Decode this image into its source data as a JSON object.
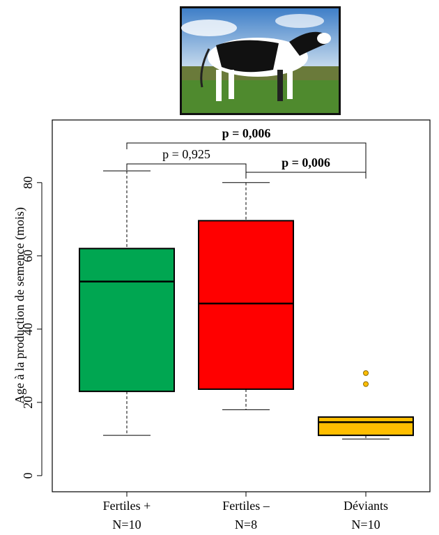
{
  "chart_data": {
    "type": "boxplot",
    "ylabel": "Age à la production de semence (mois)",
    "categories": [
      "Fertiles +",
      "Fertiles –",
      "Déviants"
    ],
    "group_sizes": [
      "N=10",
      "N=8",
      "N=10"
    ],
    "min": [
      11,
      18,
      10
    ],
    "q1": [
      23,
      23.6,
      11
    ],
    "median": [
      53,
      47,
      14.6
    ],
    "q3": [
      62,
      69.6,
      16
    ],
    "max": [
      83.2,
      80,
      16
    ],
    "outliers": [
      [],
      [],
      [
        28,
        25
      ]
    ],
    "colors": [
      "#00a651",
      "#ff0000",
      "#ffbe00"
    ],
    "ylim": [
      -4.4,
      97.1
    ],
    "yticks": [
      0,
      20,
      40,
      60,
      80
    ],
    "comparisons": [
      {
        "groups": [
          0,
          2
        ],
        "label": "p = 0,006",
        "bold": true
      },
      {
        "groups": [
          0,
          1
        ],
        "label": "p = 0,925",
        "bold": false
      },
      {
        "groups": [
          1,
          2
        ],
        "label": "p = 0,006",
        "bold": true
      }
    ]
  }
}
